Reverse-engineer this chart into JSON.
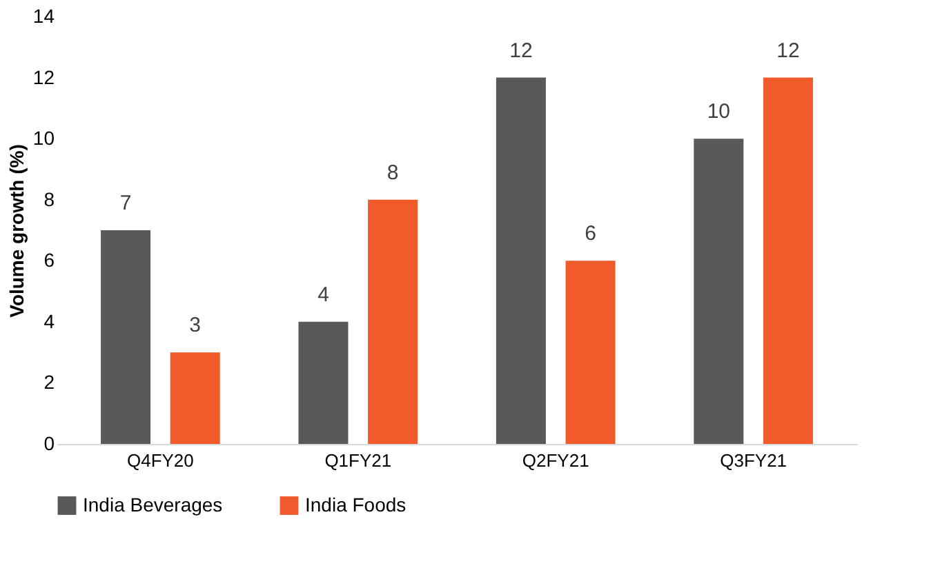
{
  "chart_data": {
    "type": "bar",
    "ylabel": "Volume growth (%)",
    "categories": [
      "Q4FY20",
      "Q1FY21",
      "Q2FY21",
      "Q3FY21"
    ],
    "series": [
      {
        "name": "India Beverages",
        "color": "#595959",
        "values": [
          7,
          4,
          12,
          10
        ]
      },
      {
        "name": "India Foods",
        "color": "#f15a2b",
        "values": [
          3,
          8,
          6,
          12
        ]
      }
    ],
    "ylim": [
      0,
      14
    ],
    "yticks": [
      0,
      2,
      4,
      6,
      8,
      10,
      12,
      14
    ],
    "grid": false,
    "legend": "bottom",
    "data_labels": true
  }
}
